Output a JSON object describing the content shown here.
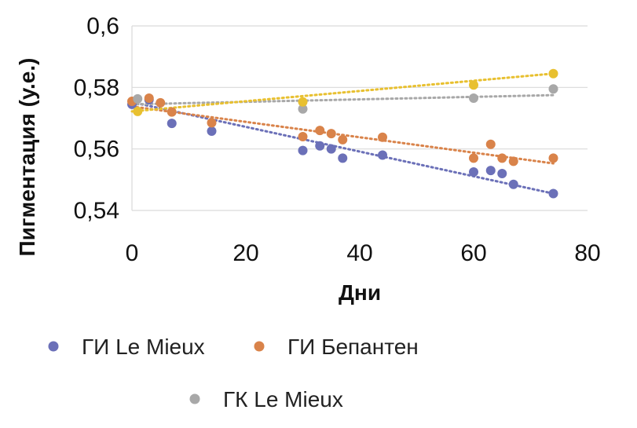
{
  "chart_data": {
    "type": "scatter",
    "title": "",
    "xlabel": "Дни",
    "ylabel": "Пигментация (у.е.)",
    "xlim": [
      0,
      80
    ],
    "ylim": [
      0.54,
      0.6
    ],
    "x_ticks": [
      "0",
      "20",
      "40",
      "60",
      "80"
    ],
    "y_ticks": [
      "0,54",
      "0,56",
      "0,58",
      "0,6"
    ],
    "grid": "horizontal",
    "legend_position": "bottom",
    "trendline_style": "dotted-linear",
    "series": [
      {
        "name": "ГИ Le Mieux",
        "color": "#6b70b8",
        "points": [
          [
            0,
            0.5745
          ],
          [
            3,
            0.576
          ],
          [
            7,
            0.5683
          ],
          [
            14,
            0.5658
          ],
          [
            30,
            0.5595
          ],
          [
            33,
            0.561
          ],
          [
            35,
            0.56
          ],
          [
            37,
            0.557
          ],
          [
            44,
            0.558
          ],
          [
            60,
            0.5525
          ],
          [
            63,
            0.553
          ],
          [
            65,
            0.552
          ],
          [
            67,
            0.5485
          ],
          [
            74,
            0.5455
          ]
        ],
        "trend": [
          [
            0,
            0.5752
          ],
          [
            74,
            0.5455
          ]
        ]
      },
      {
        "name": "ГИ Бепантен",
        "color": "#d9834a",
        "points": [
          [
            0,
            0.5755
          ],
          [
            3,
            0.5765
          ],
          [
            5,
            0.575
          ],
          [
            7,
            0.572
          ],
          [
            14,
            0.5685
          ],
          [
            30,
            0.564
          ],
          [
            33,
            0.566
          ],
          [
            35,
            0.565
          ],
          [
            37,
            0.563
          ],
          [
            44,
            0.5638
          ],
          [
            60,
            0.557
          ],
          [
            63,
            0.5615
          ],
          [
            65,
            0.557
          ],
          [
            67,
            0.556
          ],
          [
            74,
            0.557
          ]
        ],
        "trend": [
          [
            0,
            0.5738
          ],
          [
            74,
            0.5553
          ]
        ]
      },
      {
        "name": "ГК Le Mieux",
        "color": "#a8a8a8",
        "points": [
          [
            1,
            0.5763
          ],
          [
            30,
            0.573
          ],
          [
            60,
            0.5765
          ],
          [
            74,
            0.5795
          ]
        ],
        "trend": [
          [
            0,
            0.5745
          ],
          [
            74,
            0.5775
          ]
        ]
      },
      {
        "name": "",
        "color": "#e8c030",
        "points": [
          [
            1,
            0.5722
          ],
          [
            30,
            0.5753
          ],
          [
            60,
            0.5808
          ],
          [
            74,
            0.5845
          ]
        ],
        "trend": [
          [
            0,
            0.5722
          ],
          [
            74,
            0.5845
          ]
        ]
      }
    ],
    "legend": [
      {
        "label": "ГИ Le Mieux",
        "color": "#6b70b8"
      },
      {
        "label": "ГИ Бепантен",
        "color": "#d9834a"
      },
      {
        "label": "ГК Le Mieux",
        "color": "#a8a8a8"
      }
    ]
  }
}
